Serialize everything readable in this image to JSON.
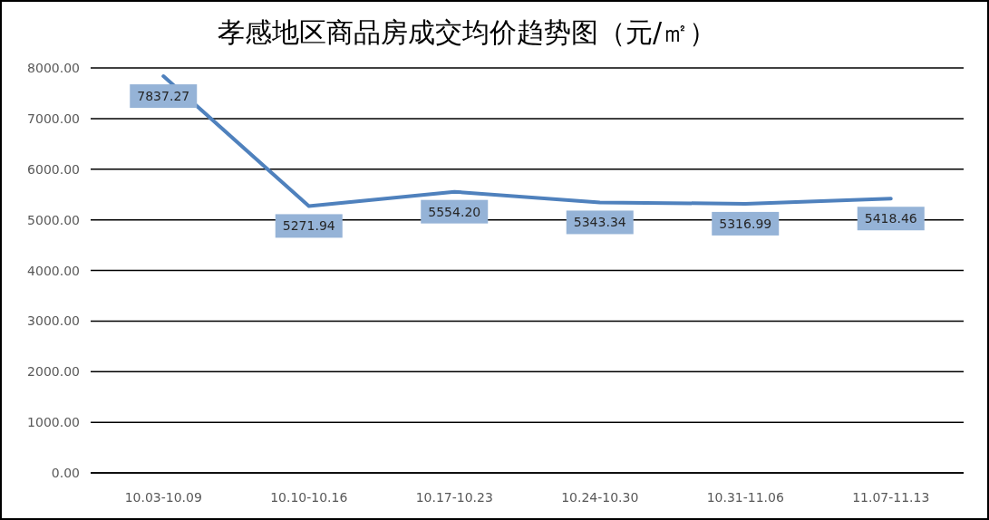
{
  "chart_data": {
    "type": "line",
    "title": "孝感地区商品房成交均价趋势图（元/㎡）",
    "categories": [
      "10.03-10.09",
      "10.10-10.16",
      "10.17-10.23",
      "10.24-10.30",
      "10.31-11.06",
      "11.07-11.13"
    ],
    "values": [
      7837.27,
      5271.94,
      5554.2,
      5343.34,
      5316.99,
      5418.46
    ],
    "color": "#4f81bd",
    "ylim": [
      0,
      8000
    ],
    "yticks": [
      {
        "value": 0,
        "label": "0.00"
      },
      {
        "value": 1000,
        "label": "1000.00"
      },
      {
        "value": 2000,
        "label": "2000.00"
      },
      {
        "value": 3000,
        "label": "3000.00"
      },
      {
        "value": 4000,
        "label": "4000.00"
      },
      {
        "value": 5000,
        "label": "5000.00"
      },
      {
        "value": 6000,
        "label": "6000.00"
      },
      {
        "value": 7000,
        "label": "7000.00"
      },
      {
        "value": 8000,
        "label": "8000.00"
      }
    ],
    "grid": "y",
    "value_labels": [
      "7837.27",
      "5271.94",
      "5554.20",
      "5343.34",
      "5316.99",
      "5418.46"
    ]
  }
}
